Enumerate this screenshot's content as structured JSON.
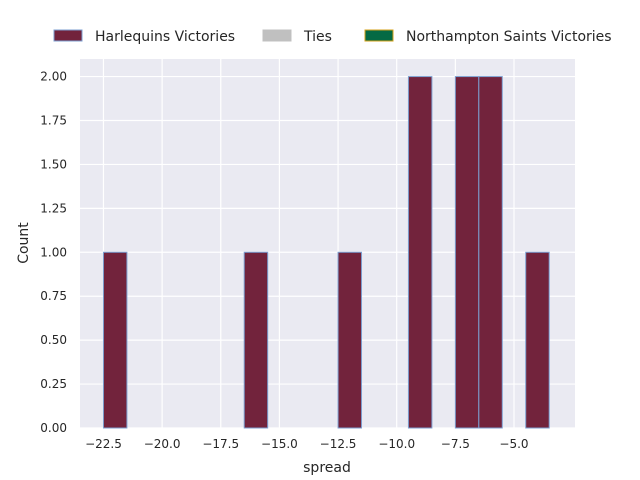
{
  "chart_data": {
    "type": "bar",
    "xlabel": "spread",
    "ylabel": "Count",
    "xlim": [
      -23.5,
      -2.4
    ],
    "ylim": [
      0,
      2.1
    ],
    "xticks": [
      "−22.5",
      "−20.0",
      "−17.5",
      "−15.0",
      "−12.5",
      "−10.0",
      "−7.5",
      "−5.0"
    ],
    "xtick_values": [
      -22.5,
      -20.0,
      -17.5,
      -15.0,
      -12.5,
      -10.0,
      -7.5,
      -5.0
    ],
    "yticks": [
      "0.00",
      "0.25",
      "0.50",
      "0.75",
      "1.00",
      "1.25",
      "1.50",
      "1.75",
      "2.00"
    ],
    "ytick_values": [
      0,
      0.25,
      0.5,
      0.75,
      1.0,
      1.25,
      1.5,
      1.75,
      2.0
    ],
    "grid": true,
    "legend_position": "top",
    "bin_width": 1.0,
    "series": [
      {
        "name": "Harlequins Victories",
        "color": "#72233c",
        "edge_color": "#7c9fd1",
        "bins": [
          {
            "x0": -22.5,
            "count": 1
          },
          {
            "x0": -16.5,
            "count": 1
          },
          {
            "x0": -12.5,
            "count": 1
          },
          {
            "x0": -9.5,
            "count": 2
          },
          {
            "x0": -7.5,
            "count": 2
          },
          {
            "x0": -6.5,
            "count": 2
          },
          {
            "x0": -4.5,
            "count": 1
          }
        ]
      },
      {
        "name": "Ties",
        "color": "#c0c0c0",
        "edge_color": "#c0c0c0",
        "bins": []
      },
      {
        "name": "Northampton Saints Victories",
        "color": "#046a44",
        "edge_color": "#d4a017",
        "bins": []
      }
    ],
    "plot_background": "#eaeaf2",
    "grid_color": "#ffffff"
  }
}
